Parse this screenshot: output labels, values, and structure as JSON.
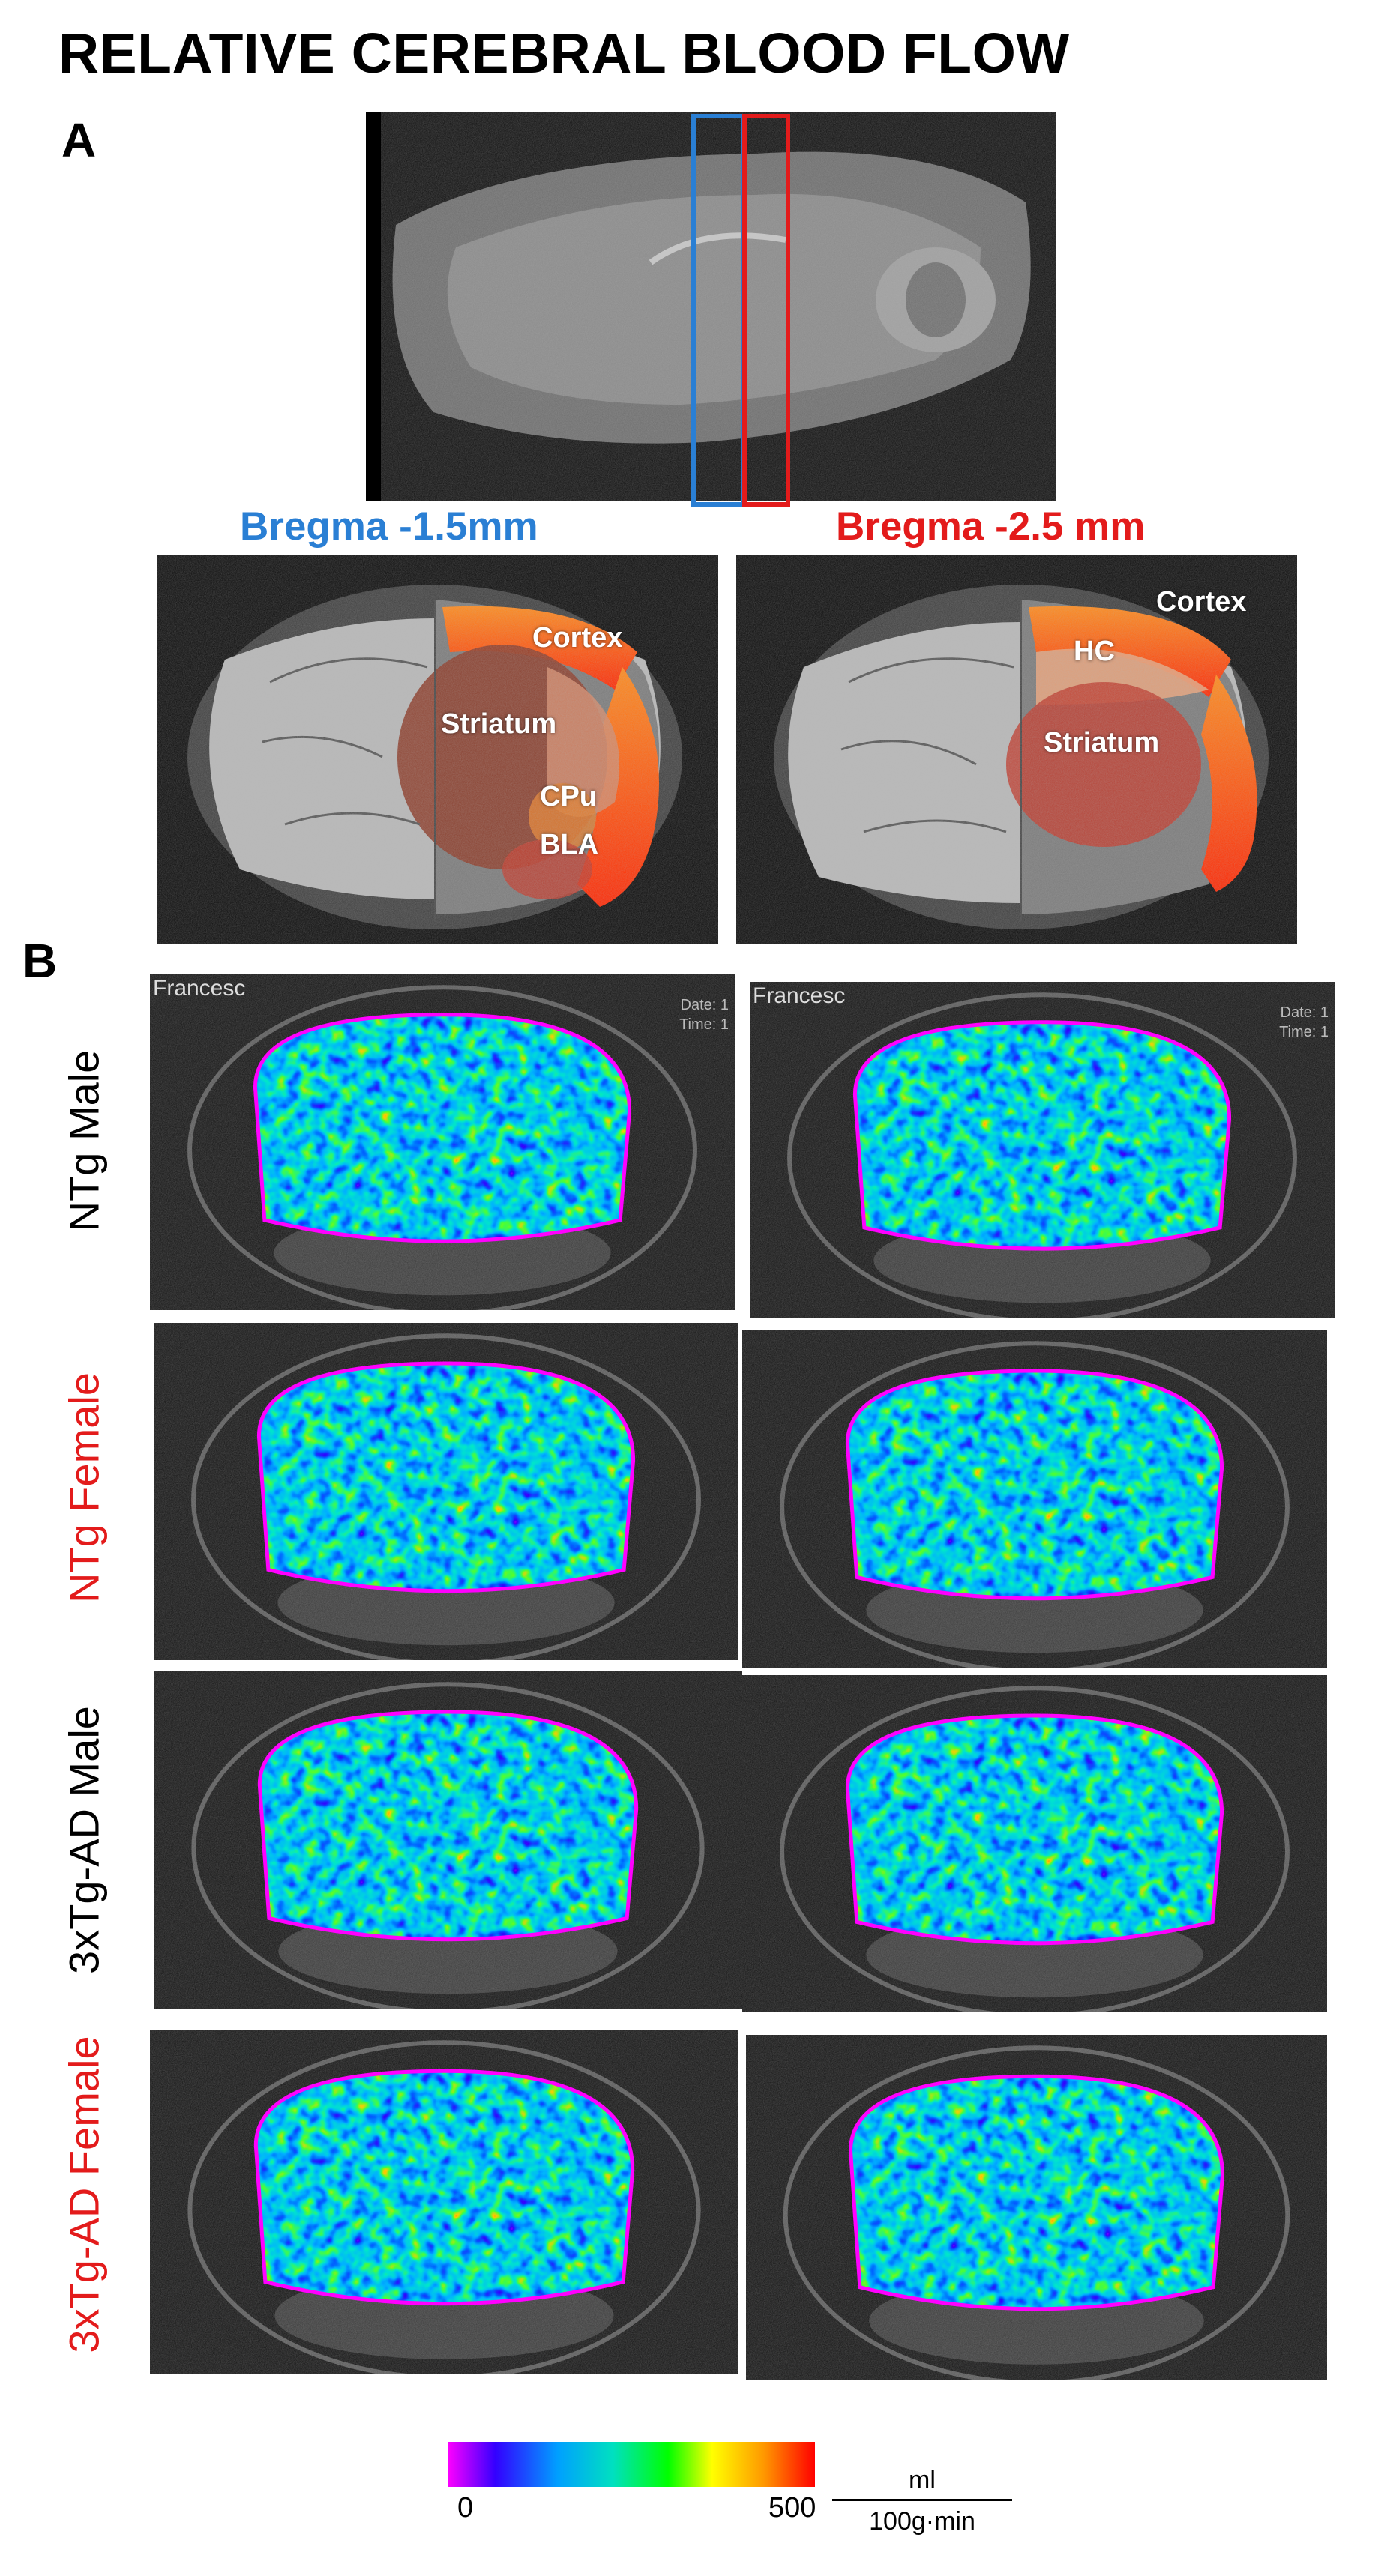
{
  "figure": {
    "title": "RELATIVE CEREBRAL BLOOD FLOW",
    "panel_a_label": "A",
    "panel_b_label": "B"
  },
  "panel_a": {
    "bregma_left": {
      "text": "Bregma  -1.5mm",
      "color": "#2a7fd4"
    },
    "bregma_right": {
      "text": "Bregma  -2.5 mm",
      "color": "#e31b1b"
    },
    "left_regions": [
      "Cortex",
      "Striatum",
      "CPu",
      "BLA"
    ],
    "right_regions": [
      "Cortex",
      "HC",
      "Striatum"
    ],
    "slice_box_colors": [
      "#2a7fd4",
      "#e31b1b"
    ]
  },
  "panel_b": {
    "rows": [
      {
        "label": "NTg Male",
        "color": "#000000"
      },
      {
        "label": "NTg Female",
        "color": "#e31b1b"
      },
      {
        "label": "3xTg-AD Male",
        "color": "#000000"
      },
      {
        "label": "3xTg-AD Female",
        "color": "#e31b1b"
      }
    ],
    "scanner_text": {
      "name": "Francesc",
      "date": "Date: 1",
      "time": "Time: 1"
    }
  },
  "colorbar": {
    "min_label": "0",
    "max_label": "500",
    "unit_numerator": "ml",
    "unit_denominator": "100g·min",
    "stops": [
      "#ff00ff",
      "#3300ff",
      "#00a0ff",
      "#00e0c0",
      "#00ff00",
      "#ffff00",
      "#ff9900",
      "#ff0000"
    ]
  }
}
